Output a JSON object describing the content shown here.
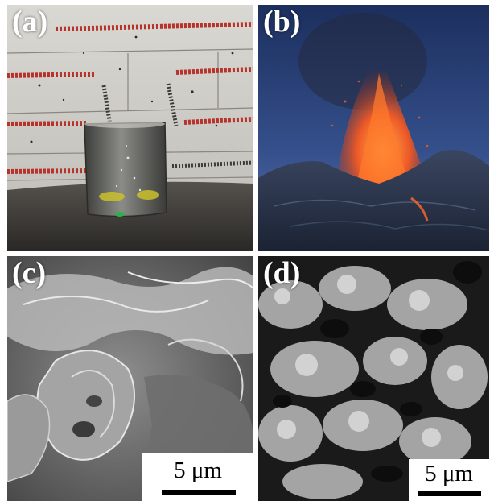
{
  "panels": [
    {
      "label": "(a)"
    },
    {
      "label": "(b)"
    },
    {
      "label": "(c)",
      "scale_bar": "5 μm"
    },
    {
      "label": "(d)",
      "scale_bar": "5 μm"
    }
  ]
}
